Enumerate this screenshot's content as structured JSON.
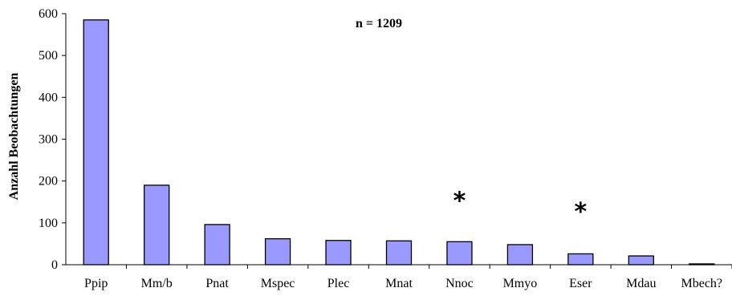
{
  "chart_data": {
    "type": "bar",
    "title": "",
    "annotation": "n = 1209",
    "ylabel": "Anzahl Beobachtungen",
    "xlabel": "",
    "ylim": [
      0,
      600
    ],
    "yticks": [
      0,
      100,
      200,
      300,
      400,
      500,
      600
    ],
    "grid": false,
    "categories": [
      "Ppip",
      "Mm/b",
      "Pnat",
      "Mspec",
      "Plec",
      "Mnat",
      "Nnoc",
      "Mmyo",
      "Eser",
      "Mdau",
      "Mbech?"
    ],
    "values": [
      585,
      190,
      96,
      62,
      58,
      57,
      55,
      48,
      26,
      21,
      2
    ],
    "colors": [
      "#9999ff",
      "#9999ff",
      "#9999ff",
      "#9999ff",
      "#9999ff",
      "#9999ff",
      "#9999ff",
      "#9999ff",
      "#9999ff",
      "#9999ff",
      "#000000"
    ],
    "markers": [
      {
        "category": "Nnoc",
        "text": "*",
        "value": 175
      },
      {
        "category": "Eser",
        "text": "*",
        "value": 150
      }
    ]
  }
}
